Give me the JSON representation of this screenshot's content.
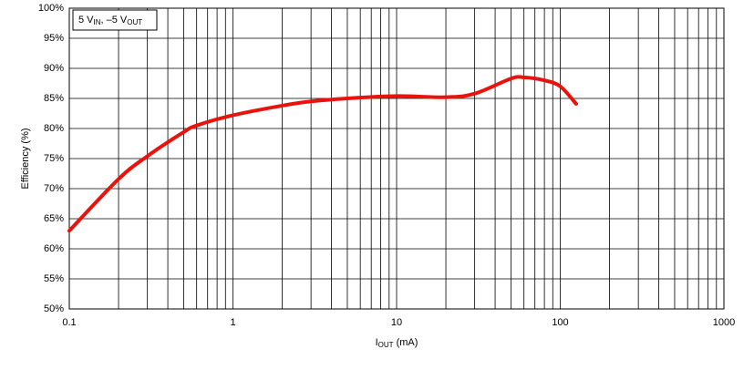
{
  "chart_data": {
    "type": "line",
    "annotation": {
      "parts": [
        "5 V",
        "IN",
        ", –5 V",
        "OUT"
      ]
    },
    "xlabel": {
      "parts": [
        "I",
        "OUT",
        " (mA)"
      ]
    },
    "ylabel": "Efficiency (%)",
    "xscale": "log",
    "grid": true,
    "xlim": [
      0.1,
      1000
    ],
    "xticks": [
      0.1,
      1,
      10,
      100,
      1000
    ],
    "xminor": [
      0.2,
      0.3,
      0.4,
      0.5,
      0.6,
      0.7,
      0.8,
      0.9,
      2,
      3,
      4,
      5,
      6,
      7,
      8,
      9,
      20,
      30,
      40,
      50,
      60,
      70,
      80,
      90,
      200,
      300,
      400,
      500,
      600,
      700,
      800,
      900
    ],
    "ylim": [
      50,
      100
    ],
    "yticks": [
      {
        "value": 50,
        "label": "50%"
      },
      {
        "value": 55,
        "label": "55%"
      },
      {
        "value": 60,
        "label": "60%"
      },
      {
        "value": 65,
        "label": "65%"
      },
      {
        "value": 70,
        "label": "70%"
      },
      {
        "value": 75,
        "label": "75%"
      },
      {
        "value": 80,
        "label": "80%"
      },
      {
        "value": 85,
        "label": "85%"
      },
      {
        "value": 90,
        "label": "90%"
      },
      {
        "value": 95,
        "label": "95%"
      },
      {
        "value": 100,
        "label": "100%"
      }
    ],
    "series": [
      {
        "color": "#e8130c",
        "x": [
          0.1,
          0.2,
          0.3,
          0.5,
          0.6,
          1,
          2,
          3,
          5,
          10,
          20,
          30,
          50,
          60,
          80,
          100,
          125
        ],
        "values": [
          63,
          71.6,
          75.4,
          79.4,
          80.5,
          82.2,
          83.8,
          84.5,
          85,
          85.4,
          85.2,
          85.8,
          88.3,
          88.5,
          88,
          87,
          84.1
        ]
      }
    ]
  }
}
